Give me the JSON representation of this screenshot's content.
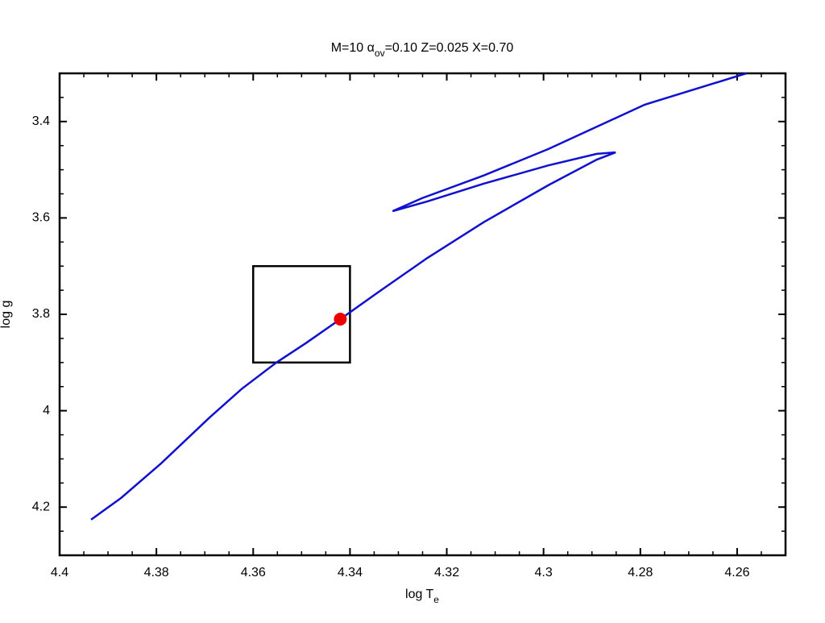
{
  "chart_data": {
    "type": "line",
    "title": [
      {
        "text": "M=10   α"
      },
      {
        "text": "ov",
        "sub": true
      },
      {
        "text": "=0.10    Z=0.025     X=0.70"
      }
    ],
    "xlabel": [
      {
        "text": "log T"
      },
      {
        "text": "e",
        "sub": true
      }
    ],
    "ylabel": "log g",
    "x": [
      4.3935,
      4.3873,
      4.379,
      4.369,
      4.3624,
      4.3552,
      4.349,
      4.342,
      4.334,
      4.324,
      4.3124,
      4.299,
      4.289,
      4.2851,
      4.289,
      4.299,
      4.3124,
      4.3241,
      4.3312,
      4.3251,
      4.3124,
      4.299,
      4.2791,
      4.2581
    ],
    "series": [
      {
        "color": "#1010d0",
        "values": [
          4.226,
          4.181,
          4.109,
          4.014,
          3.955,
          3.9,
          3.859,
          3.81,
          3.753,
          3.683,
          3.609,
          3.532,
          3.479,
          3.464,
          3.467,
          3.491,
          3.529,
          3.566,
          3.586,
          3.559,
          3.512,
          3.457,
          3.365,
          3.3
        ]
      }
    ],
    "box": {
      "x": [
        4.36,
        4.34
      ],
      "y": [
        3.7,
        3.9
      ],
      "color": "#000000"
    },
    "point": {
      "x": 4.342,
      "y": 3.81,
      "color": "#ee0000"
    },
    "xlim": [
      4.4,
      4.25
    ],
    "ylim": [
      3.3,
      4.3
    ],
    "xticks": [
      4.4,
      4.38,
      4.36,
      4.34,
      4.32,
      4.3,
      4.28,
      4.26
    ],
    "yticks": [
      3.4,
      3.6,
      3.8,
      4,
      4.2
    ]
  }
}
